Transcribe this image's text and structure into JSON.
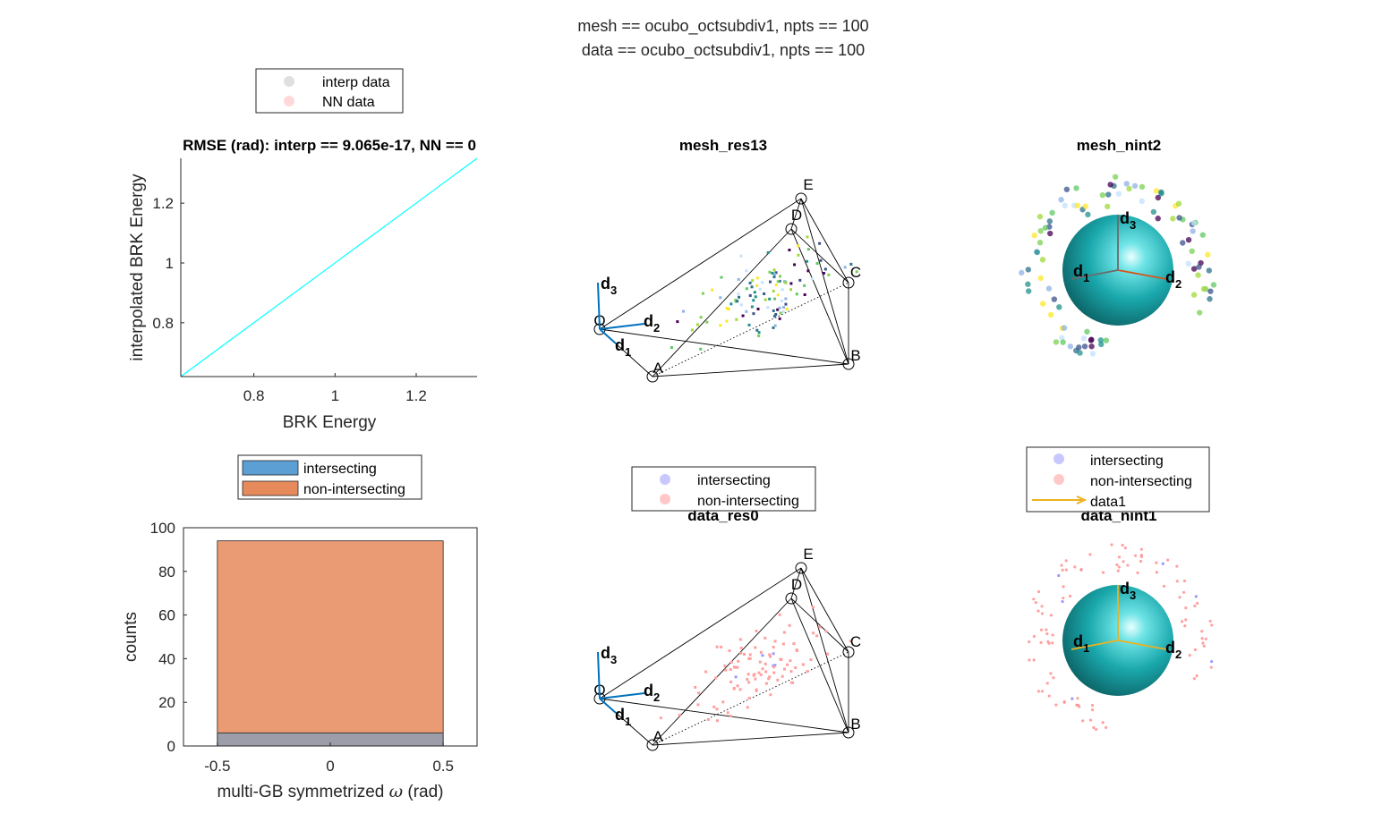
{
  "figure": {
    "suptitle_line1": "mesh == ocubo_octsubdiv1, npts == 100",
    "suptitle_line2": "data == ocubo_octsubdiv1, npts == 100"
  },
  "colors": {
    "axis": "#262626",
    "line": "#00ffff",
    "interp": "#bfbfbf",
    "nn": "#ffb3b3",
    "intersecting": "#0072bd",
    "nonintersecting": "#d95319",
    "sphere": "#18a9ad",
    "arrow_blue": "#0072bd",
    "arrow_red": "#d95319",
    "arrow_yellow": "#edb120",
    "intersect_marker": "#b3b3ff",
    "nonintersect_marker": "#ffb3b3"
  },
  "chart_data": [
    {
      "type": "line",
      "title": "RMSE (rad): interp == 9.065e-17, NN == 0",
      "xlabel": "BRK Energy",
      "ylabel": "interpolated BRK Energy",
      "xlim": [
        0.62,
        1.35
      ],
      "ylim": [
        0.62,
        1.35
      ],
      "xticks": [
        0.8,
        1,
        1.2
      ],
      "yticks": [
        0.8,
        1,
        1.2
      ],
      "xtick_labels": [
        "0.8",
        "1",
        "1.2"
      ],
      "ytick_labels": [
        "0.8",
        "1",
        "1.2"
      ],
      "series": [
        {
          "x": [
            0.62,
            1.35
          ],
          "y": [
            0.62,
            1.35
          ]
        }
      ],
      "legend": [
        "interp data",
        "NN data"
      ],
      "legend_position": "top"
    },
    {
      "type": "bar",
      "xlabel_prefix": "multi-GB symmetrized ",
      "xlabel_symbol": "ω",
      "xlabel_suffix": " (rad)",
      "ylabel": "counts",
      "xlim": [
        -0.65,
        0.65
      ],
      "ylim": [
        0,
        100
      ],
      "xticks": [
        -0.5,
        0,
        0.5
      ],
      "yticks": [
        0,
        20,
        40,
        60,
        80,
        100
      ],
      "xtick_labels": [
        "-0.5",
        "0",
        "0.5"
      ],
      "ytick_labels": [
        "0",
        "20",
        "40",
        "60",
        "80",
        "100"
      ],
      "bin_edges": [
        -0.5,
        0.5
      ],
      "series": [
        {
          "name": "intersecting",
          "values": [
            6
          ]
        },
        {
          "name": "non-intersecting",
          "values": [
            94
          ]
        }
      ],
      "legend_position": "top"
    }
  ],
  "panels": {
    "mesh_res": {
      "title": "mesh_res13",
      "vertex_labels": [
        "O",
        "A",
        "B",
        "C",
        "D",
        "E"
      ],
      "axis_labels": [
        "d",
        "d",
        "d"
      ],
      "axis_subs": [
        "1",
        "2",
        "3"
      ]
    },
    "mesh_nint": {
      "title": "mesh_nint2",
      "axis_labels": [
        "d",
        "d",
        "d"
      ],
      "axis_subs": [
        "1",
        "2",
        "3"
      ]
    },
    "data_res": {
      "title": "data_res0",
      "vertex_labels": [
        "O",
        "A",
        "B",
        "C",
        "D",
        "E"
      ],
      "axis_labels": [
        "d",
        "d",
        "d"
      ],
      "axis_subs": [
        "1",
        "2",
        "3"
      ],
      "legend": [
        "intersecting",
        "non-intersecting"
      ]
    },
    "data_nint": {
      "title": "data_nint1",
      "axis_labels": [
        "d",
        "d",
        "d"
      ],
      "axis_subs": [
        "1",
        "2",
        "3"
      ],
      "legend": [
        "intersecting",
        "non-intersecting",
        "data1"
      ]
    }
  }
}
